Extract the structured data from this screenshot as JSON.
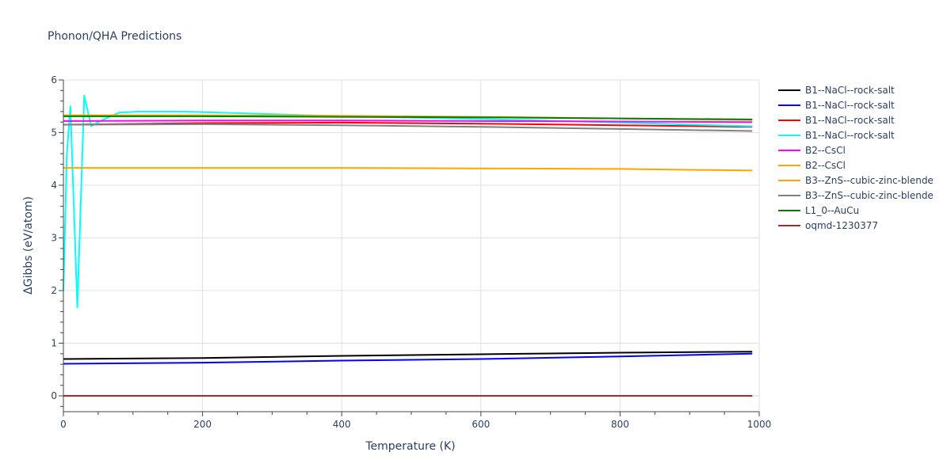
{
  "chart_data": {
    "type": "line",
    "title": "Phonon/QHA Predictions",
    "xlabel": "Temperature (K)",
    "ylabel": "ΔGibbs (eV/atom)",
    "xlim": [
      0,
      1000
    ],
    "ylim": [
      -0.3,
      6
    ],
    "xticks": [
      0,
      200,
      400,
      600,
      800,
      1000
    ],
    "yticks": [
      0,
      1,
      2,
      3,
      4,
      5,
      6
    ],
    "grid": true,
    "legend_position": "right",
    "series": [
      {
        "name": "B1--NaCl--rock-salt",
        "color": "#000000",
        "x": [
          0,
          200,
          400,
          600,
          800,
          990
        ],
        "y": [
          0.7,
          0.72,
          0.76,
          0.79,
          0.82,
          0.84
        ]
      },
      {
        "name": "B1--NaCl--rock-salt",
        "color": "#0000ff",
        "x": [
          0,
          200,
          400,
          600,
          800,
          990
        ],
        "y": [
          0.61,
          0.63,
          0.67,
          0.7,
          0.75,
          0.8
        ]
      },
      {
        "name": "B1--NaCl--rock-salt",
        "color": "#ff0000",
        "x": [
          0,
          200,
          400,
          600,
          800,
          990
        ],
        "y": [
          5.15,
          5.18,
          5.19,
          5.17,
          5.14,
          5.11
        ]
      },
      {
        "name": "B1--NaCl--rock-salt",
        "color": "#00ffff",
        "x": [
          0,
          5,
          10,
          20,
          30,
          40,
          50,
          80,
          110,
          170,
          250,
          400,
          600,
          800,
          990
        ],
        "y": [
          2.0,
          4.6,
          5.5,
          1.68,
          5.7,
          5.12,
          5.2,
          5.38,
          5.4,
          5.4,
          5.37,
          5.31,
          5.26,
          5.19,
          5.12
        ]
      },
      {
        "name": "B2--CsCl",
        "color": "#ff00ff",
        "x": [
          0,
          200,
          400,
          600,
          800,
          990
        ],
        "y": [
          5.22,
          5.23,
          5.23,
          5.22,
          5.21,
          5.2
        ]
      },
      {
        "name": "B2--CsCl",
        "color": "#ffa500",
        "x": [
          0,
          200,
          400,
          600,
          800,
          990
        ],
        "y": [
          4.33,
          4.33,
          4.33,
          4.32,
          4.31,
          4.28
        ]
      },
      {
        "name": "B3--ZnS--cubic-zinc-blende",
        "color": "#ffa500",
        "x": [
          0,
          200,
          400,
          600,
          800,
          990
        ],
        "y": [
          5.33,
          5.33,
          5.32,
          5.3,
          5.27,
          5.24
        ]
      },
      {
        "name": "B3--ZnS--cubic-zinc-blende",
        "color": "#808080",
        "x": [
          0,
          200,
          400,
          600,
          800,
          990
        ],
        "y": [
          5.15,
          5.16,
          5.14,
          5.11,
          5.07,
          5.03
        ]
      },
      {
        "name": "L1_0--AuCu",
        "color": "#008000",
        "x": [
          0,
          200,
          400,
          600,
          800,
          990
        ],
        "y": [
          5.31,
          5.31,
          5.3,
          5.29,
          5.27,
          5.25
        ]
      },
      {
        "name": "oqmd-1230377",
        "color": "#a52a2a",
        "x": [
          0,
          990
        ],
        "y": [
          0.0,
          0.0
        ]
      }
    ]
  }
}
